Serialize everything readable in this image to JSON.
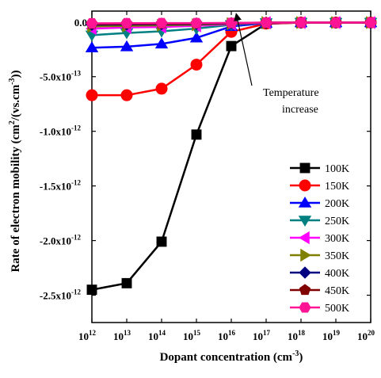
{
  "chart_data": {
    "type": "line",
    "xlabel": "Dopant concentration (cm",
    "xlabel_sup": "-3",
    "xlabel_end": ")",
    "ylabel": "Rate of electron mobility (cm",
    "ylabel_sup1": "2",
    "ylabel_mid": "/(vs.cm",
    "ylabel_sup2": "-3",
    "ylabel_end": "))",
    "x_scale": "log",
    "xlim": [
      1000000000000.0,
      1e+20
    ],
    "ylim": [
      -2.75e-12,
      1e-13
    ],
    "x_ticks": [
      {
        "base": "10",
        "exp": "12"
      },
      {
        "base": "10",
        "exp": "13"
      },
      {
        "base": "10",
        "exp": "14"
      },
      {
        "base": "10",
        "exp": "15"
      },
      {
        "base": "10",
        "exp": "16"
      },
      {
        "base": "10",
        "exp": "17"
      },
      {
        "base": "10",
        "exp": "18"
      },
      {
        "base": "10",
        "exp": "19"
      },
      {
        "base": "10",
        "exp": "20"
      }
    ],
    "y_ticks": [
      {
        "label": "0.0",
        "value": 0
      },
      {
        "label": "-5.0x10",
        "exp": "-13",
        "value": -5e-13
      },
      {
        "label": "-1.0x10",
        "exp": "-12",
        "value": -1e-12
      },
      {
        "label": "-1.5x10",
        "exp": "-12",
        "value": -1.5e-12
      },
      {
        "label": "-2.0x10",
        "exp": "-12",
        "value": -2e-12
      },
      {
        "label": "-2.5x10",
        "exp": "-12",
        "value": -2.5e-12
      }
    ],
    "x": [
      1000000000000.0,
      10000000000000.0,
      100000000000000.0,
      1000000000000000.0,
      1e+16,
      1e+17,
      1e+18,
      1e+19,
      1e+20
    ],
    "series": [
      {
        "name": "100K",
        "color": "#000000",
        "marker": "square",
        "values": [
          -2.45e-12,
          -2.39e-12,
          -2.01e-12,
          -1.03e-12,
          -2.2e-13,
          -1.5e-14,
          -5e-15,
          -5e-15,
          -5e-15
        ]
      },
      {
        "name": "150K",
        "color": "#ff0000",
        "marker": "circle",
        "values": [
          -6.7e-13,
          -6.7e-13,
          -6.1e-13,
          -3.9e-13,
          -9e-14,
          -1.5e-14,
          -5e-15,
          -5e-15,
          -5e-15
        ]
      },
      {
        "name": "200K",
        "color": "#0000ff",
        "marker": "triangle-up",
        "values": [
          -2.35e-13,
          -2.25e-13,
          -2e-13,
          -1.45e-13,
          -4e-14,
          -1e-14,
          -5e-15,
          -5e-15,
          -5e-15
        ]
      },
      {
        "name": "250K",
        "color": "#008080",
        "marker": "triangle-down",
        "values": [
          -1.2e-13,
          -1e-13,
          -8.5e-14,
          -6e-14,
          -2.5e-14,
          -8e-15,
          -5e-15,
          -5e-15,
          -5e-15
        ]
      },
      {
        "name": "300K",
        "color": "#ff00ff",
        "marker": "triangle-left",
        "values": [
          -6e-14,
          -5e-14,
          -4.5e-14,
          -3.5e-14,
          -2e-14,
          -6e-15,
          -5e-15,
          -5e-15,
          -5e-15
        ]
      },
      {
        "name": "350K",
        "color": "#808000",
        "marker": "triangle-right",
        "values": [
          -4e-14,
          -3.5e-14,
          -3e-14,
          -2.5e-14,
          -1.5e-14,
          -5e-15,
          -5e-15,
          -5e-15,
          -5e-15
        ]
      },
      {
        "name": "400K",
        "color": "#000080",
        "marker": "diamond",
        "values": [
          -2.5e-14,
          -2.2e-14,
          -2e-14,
          -1.8e-14,
          -1.2e-14,
          -5e-15,
          -5e-15,
          -5e-15,
          -5e-15
        ]
      },
      {
        "name": "450K",
        "color": "#800000",
        "marker": "pentagon",
        "values": [
          -1.8e-14,
          -1.6e-14,
          -1.5e-14,
          -1.3e-14,
          -1e-14,
          -5e-15,
          -5e-15,
          -5e-15,
          -5e-15
        ]
      },
      {
        "name": "500K",
        "color": "#ff1493",
        "marker": "hexagon",
        "values": [
          -1.2e-14,
          -1.1e-14,
          -1e-14,
          -1e-14,
          -8e-15,
          -5e-15,
          -5e-15,
          -5e-15,
          -5e-15
        ]
      }
    ],
    "annotation": {
      "line1": "Temperature",
      "line2": "increase"
    },
    "legend_position": "lower-right",
    "grid": false
  }
}
